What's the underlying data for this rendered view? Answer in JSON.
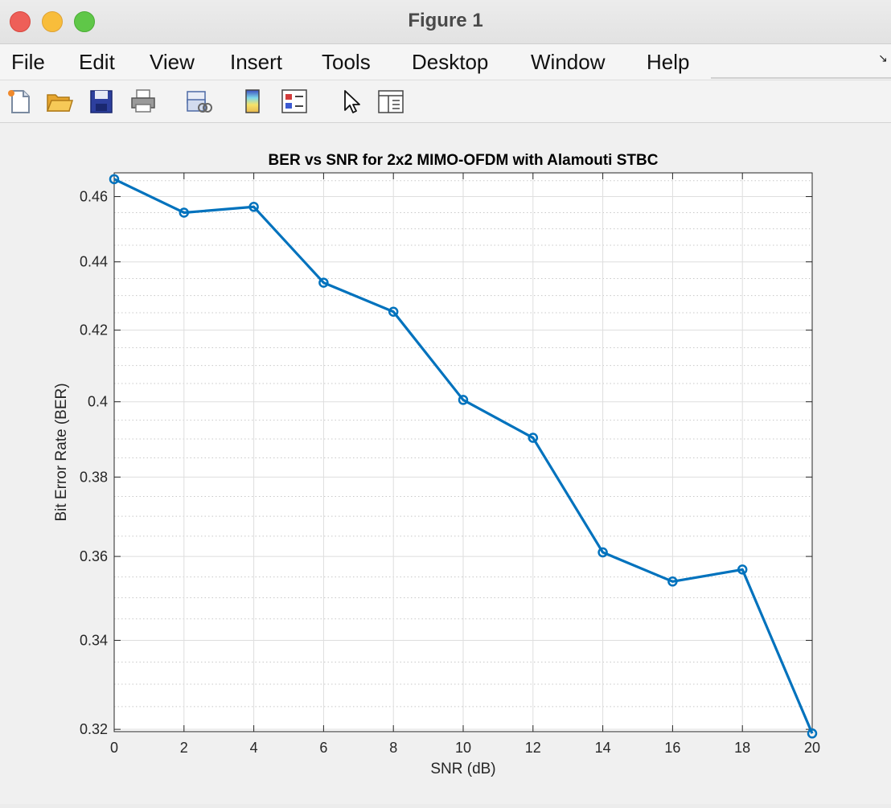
{
  "window": {
    "title": "Figure 1"
  },
  "menu": {
    "items": [
      "File",
      "Edit",
      "View",
      "Insert",
      "Tools",
      "Desktop",
      "Window",
      "Help"
    ]
  },
  "toolbar": {
    "icons": [
      "new-figure-icon",
      "open-file-icon",
      "save-icon",
      "print-icon",
      "link-icon",
      "colorbar-icon",
      "legend-icon",
      "pointer-icon",
      "property-inspector-icon"
    ]
  },
  "chart_data": {
    "type": "line",
    "title": "BER vs SNR for 2x2 MIMO-OFDM with Alamouti STBC",
    "xlabel": "SNR (dB)",
    "ylabel": "Bit Error Rate (BER)",
    "xlim": [
      0,
      20
    ],
    "ylim": [
      0.3195,
      0.4675
    ],
    "y_scale": "log",
    "xticks": [
      0,
      2,
      4,
      6,
      8,
      10,
      12,
      14,
      16,
      18,
      20
    ],
    "yticks": [
      0.32,
      0.34,
      0.36,
      0.38,
      0.4,
      0.42,
      0.44,
      0.46
    ],
    "ytick_labels": [
      "0.32",
      "0.34",
      "0.36",
      "0.38",
      "0.4",
      "0.42",
      "0.44",
      "0.46"
    ],
    "grid": true,
    "minor_grid": true,
    "series": [
      {
        "x": [
          0,
          2,
          4,
          6,
          8,
          10,
          12,
          14,
          16,
          18,
          20
        ],
        "values": [
          0.4655,
          0.455,
          0.4568,
          0.4338,
          0.4253,
          0.4005,
          0.3903,
          0.361,
          0.3539,
          0.3568,
          0.3191
        ],
        "color": "#0072BD",
        "marker": "circle"
      }
    ]
  }
}
